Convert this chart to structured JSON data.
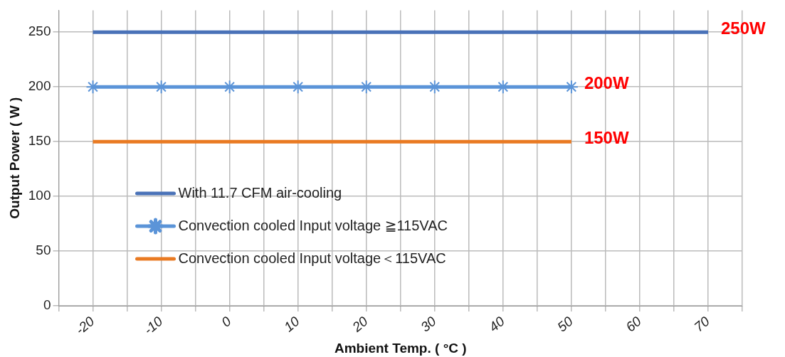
{
  "chart_data": {
    "type": "line",
    "xlabel": "Ambient Temp. ( °C )",
    "ylabel": "Output Power ( W )",
    "xlim": [
      -25,
      75
    ],
    "ylim": [
      0,
      270
    ],
    "xticks": [
      {
        "value": -25,
        "label": null
      },
      -20,
      {
        "value": -15,
        "label": null
      },
      -10,
      {
        "value": -5,
        "label": null
      },
      0,
      {
        "value": 5,
        "label": null
      },
      10,
      {
        "value": 15,
        "label": null
      },
      20,
      {
        "value": 25,
        "label": null
      },
      30,
      {
        "value": 35,
        "label": null
      },
      40,
      {
        "value": 45,
        "label": null
      },
      50,
      {
        "value": 55,
        "label": null
      },
      60,
      {
        "value": 65,
        "label": null
      },
      70,
      {
        "value": 75,
        "label": null
      }
    ],
    "yticks": [
      0,
      50,
      100,
      150,
      200,
      250
    ],
    "grid": true,
    "legend": "bottom left",
    "series": [
      {
        "name": "With 11.7 CFM air-cooling",
        "color": "#4a72b8",
        "x": [
          -20,
          70
        ],
        "values": [
          250,
          250
        ],
        "marker": "none"
      },
      {
        "name": "Convection cooled Input voltage ≧115VAC",
        "color": "#5b94d8",
        "x": [
          -20,
          -10,
          0,
          10,
          20,
          30,
          40,
          50
        ],
        "values": [
          200,
          200,
          200,
          200,
          200,
          200,
          200,
          200
        ],
        "marker": "cross"
      },
      {
        "name": "Convection cooled Input voltage＜115VAC",
        "color": "#e97a22",
        "x": [
          -20,
          50
        ],
        "values": [
          150,
          150
        ],
        "marker": "none"
      }
    ],
    "annotations": [
      "250W",
      "200W",
      "150W"
    ]
  }
}
